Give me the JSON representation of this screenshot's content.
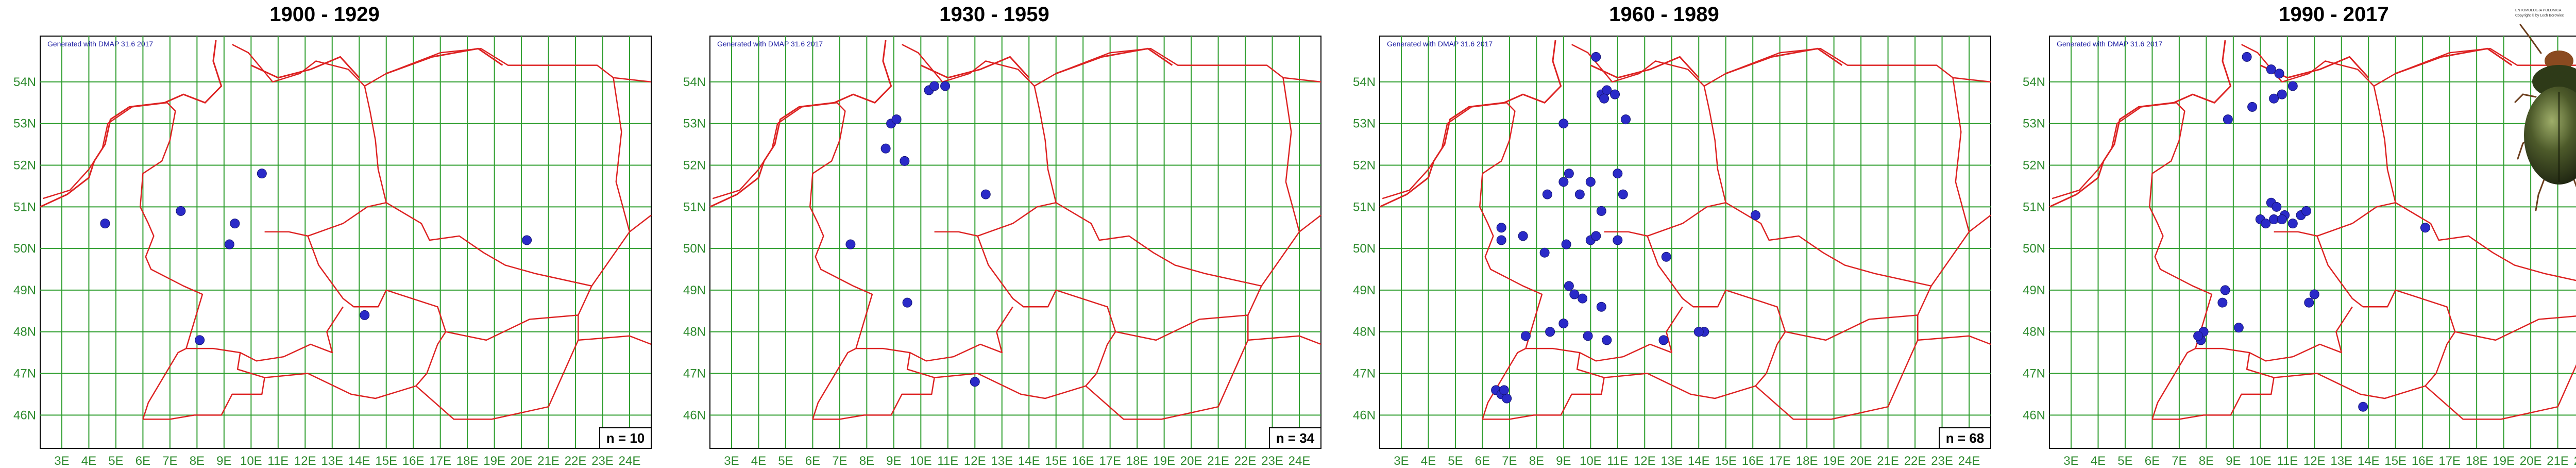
{
  "generator_note": "Generated with DMAP 31.6 2017",
  "photo_caption": {
    "line1": "ENTOMOLOGIA POLONICA",
    "line2": "Copyright © by Lech Borowiec"
  },
  "x_ticks": [
    "3E",
    "4E",
    "5E",
    "6E",
    "7E",
    "8E",
    "9E",
    "10E",
    "11E",
    "12E",
    "13E",
    "14E",
    "15E",
    "16E",
    "17E",
    "18E",
    "19E",
    "20E",
    "21E",
    "22E",
    "23E",
    "24E"
  ],
  "y_ticks": [
    "54N",
    "53N",
    "52N",
    "51N",
    "50N",
    "49N",
    "48N",
    "47N",
    "46N"
  ],
  "extent": {
    "lon": [
      2.2,
      24.8
    ],
    "lat": [
      45.2,
      55.1
    ]
  },
  "panels": [
    {
      "title": "1900 - 1929",
      "count_label": "n = 10",
      "records": [
        [
          4.6,
          50.6
        ],
        [
          7.4,
          50.9
        ],
        [
          9.2,
          50.1
        ],
        [
          9.4,
          50.6
        ],
        [
          10.4,
          51.8
        ],
        [
          8.1,
          47.8
        ],
        [
          14.2,
          48.4
        ],
        [
          20.2,
          50.2
        ]
      ]
    },
    {
      "title": "1930 - 1959",
      "count_label": "n = 34",
      "records": [
        [
          8.9,
          53.0
        ],
        [
          9.1,
          53.1
        ],
        [
          10.3,
          53.8
        ],
        [
          10.5,
          53.9
        ],
        [
          10.9,
          53.9
        ],
        [
          8.7,
          52.4
        ],
        [
          9.4,
          52.1
        ],
        [
          7.4,
          50.1
        ],
        [
          9.5,
          48.7
        ],
        [
          12.4,
          51.3
        ],
        [
          12.0,
          46.8
        ]
      ]
    },
    {
      "title": "1960 - 1989",
      "count_label": "n = 68",
      "records": [
        [
          10.2,
          54.6
        ],
        [
          10.4,
          53.7
        ],
        [
          10.6,
          53.8
        ],
        [
          10.9,
          53.7
        ],
        [
          10.5,
          53.6
        ],
        [
          11.3,
          53.1
        ],
        [
          9.0,
          53.0
        ],
        [
          9.6,
          51.3
        ],
        [
          8.4,
          51.3
        ],
        [
          9.2,
          51.8
        ],
        [
          9.0,
          51.6
        ],
        [
          10.0,
          51.6
        ],
        [
          11.0,
          51.8
        ],
        [
          11.2,
          51.3
        ],
        [
          10.4,
          50.9
        ],
        [
          10.0,
          50.2
        ],
        [
          10.2,
          50.3
        ],
        [
          9.1,
          50.1
        ],
        [
          11.0,
          50.2
        ],
        [
          6.7,
          50.5
        ],
        [
          6.7,
          50.2
        ],
        [
          7.5,
          50.3
        ],
        [
          8.3,
          49.9
        ],
        [
          9.2,
          49.1
        ],
        [
          9.4,
          48.9
        ],
        [
          9.7,
          48.8
        ],
        [
          10.4,
          48.6
        ],
        [
          9.0,
          48.2
        ],
        [
          9.9,
          47.9
        ],
        [
          10.6,
          47.8
        ],
        [
          8.5,
          48.0
        ],
        [
          7.6,
          47.9
        ],
        [
          12.8,
          49.8
        ],
        [
          16.1,
          50.8
        ],
        [
          14.2,
          48.0
        ],
        [
          14.0,
          48.0
        ],
        [
          12.7,
          47.8
        ],
        [
          6.5,
          46.6
        ],
        [
          6.7,
          46.5
        ],
        [
          6.9,
          46.4
        ],
        [
          6.8,
          46.6
        ]
      ]
    },
    {
      "title": "1990 - 2017",
      "count_label": "n = 78",
      "records": [
        [
          9.5,
          54.6
        ],
        [
          10.4,
          54.3
        ],
        [
          10.7,
          54.2
        ],
        [
          11.2,
          53.9
        ],
        [
          10.8,
          53.7
        ],
        [
          10.5,
          53.6
        ],
        [
          9.7,
          53.4
        ],
        [
          8.8,
          53.1
        ],
        [
          10.4,
          51.1
        ],
        [
          10.6,
          51.0
        ],
        [
          10.9,
          50.8
        ],
        [
          10.5,
          50.7
        ],
        [
          10.8,
          50.7
        ],
        [
          11.2,
          50.6
        ],
        [
          11.5,
          50.8
        ],
        [
          10.0,
          50.7
        ],
        [
          10.2,
          50.6
        ],
        [
          11.7,
          50.9
        ],
        [
          16.1,
          50.5
        ],
        [
          8.7,
          49.0
        ],
        [
          8.6,
          48.7
        ],
        [
          9.2,
          48.1
        ],
        [
          7.9,
          48.0
        ],
        [
          7.8,
          47.8
        ],
        [
          7.7,
          47.9
        ],
        [
          12.0,
          48.9
        ],
        [
          11.8,
          48.7
        ],
        [
          13.8,
          46.2
        ]
      ]
    }
  ]
}
